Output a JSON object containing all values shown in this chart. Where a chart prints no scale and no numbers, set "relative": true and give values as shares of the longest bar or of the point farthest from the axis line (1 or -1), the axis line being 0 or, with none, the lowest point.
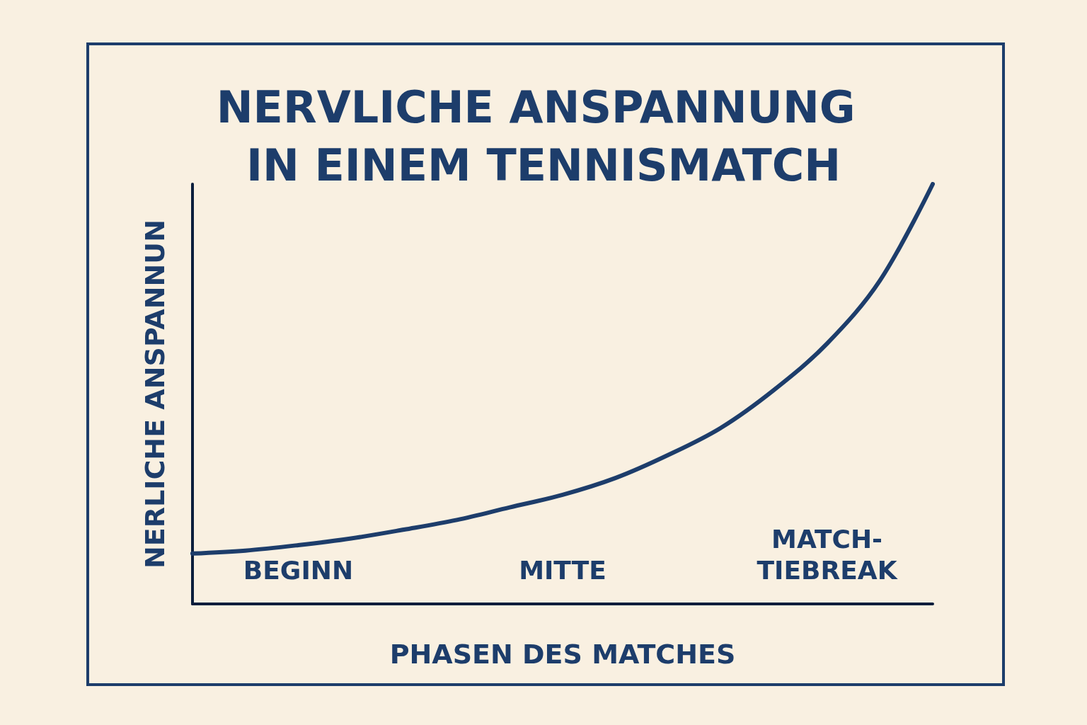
{
  "chart_data": {
    "type": "line",
    "title": "NERVLICHE ANSPANNUNG IN EINEM TENNISMATCH",
    "xlabel": "PHASEN DES MATCHES",
    "ylabel": "NERLICHE ANSPANNUN",
    "relative": true,
    "marker": "none",
    "categories": [
      null,
      null,
      "BEGINN",
      null,
      null,
      null,
      null,
      "MITTE",
      null,
      null,
      null,
      null,
      "MATCH-TIEBREAK",
      null,
      null
    ],
    "series": [
      {
        "color": "#1d3d6b",
        "values": [
          0.12,
          0.127,
          0.14,
          0.156,
          0.177,
          0.2,
          0.23,
          0.26,
          0.3,
          0.355,
          0.42,
          0.51,
          0.62,
          0.77,
          1
        ]
      }
    ]
  }
}
